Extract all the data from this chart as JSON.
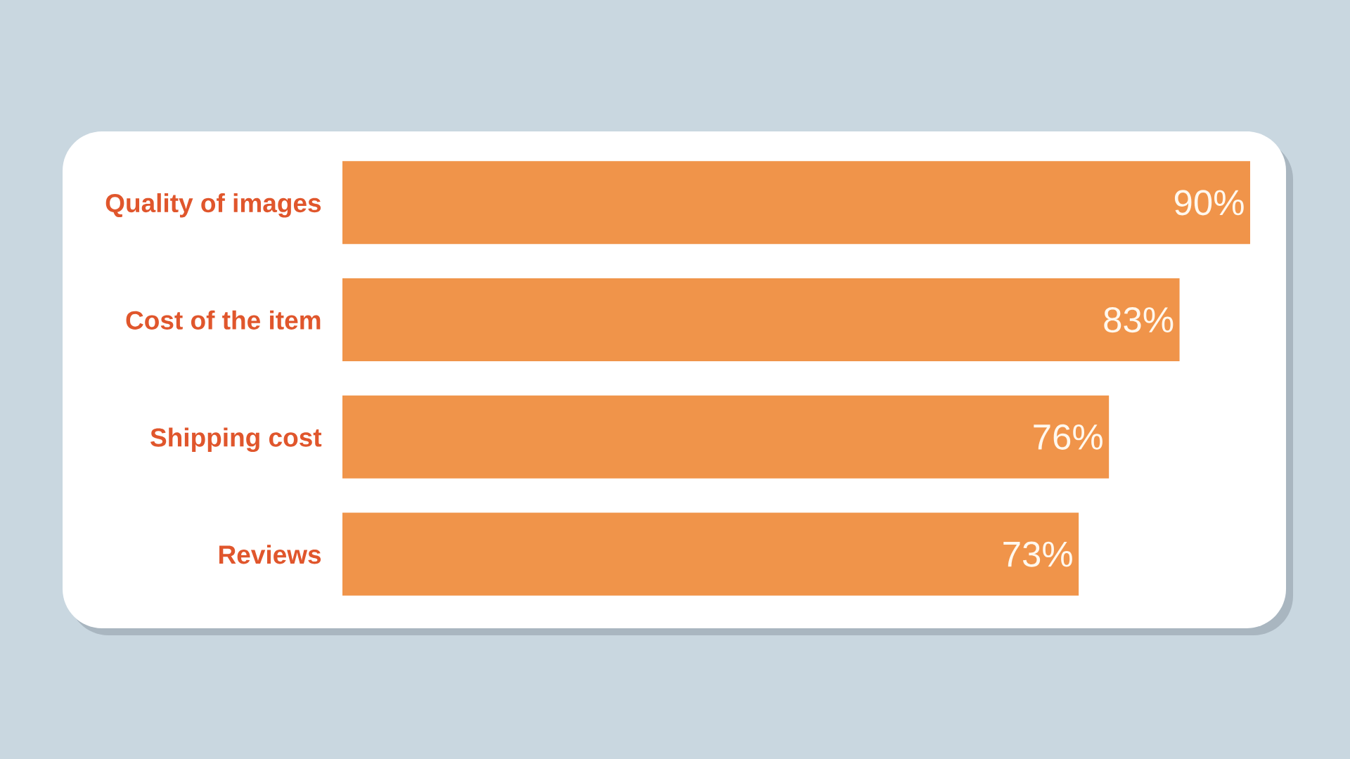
{
  "chart_data": {
    "type": "bar",
    "orientation": "horizontal",
    "categories": [
      "Quality of images",
      "Cost of the item",
      "Shipping cost",
      "Reviews"
    ],
    "values": [
      90,
      83,
      76,
      73
    ],
    "value_labels": [
      "90%",
      "83%",
      "76%",
      "73%"
    ],
    "color": "#f0944a"
  }
}
